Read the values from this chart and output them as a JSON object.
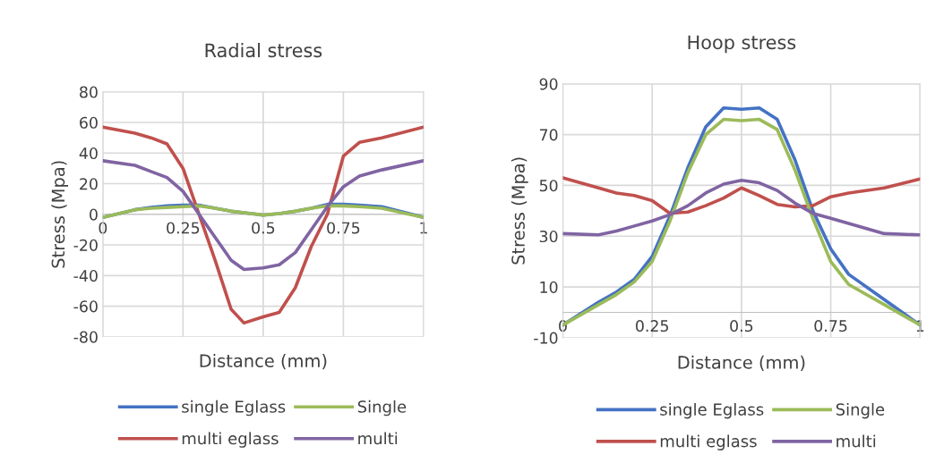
{
  "chart_data": [
    {
      "type": "line",
      "title": "Radial stress",
      "xlabel": "Distance (mm)",
      "ylabel": "Stress (Mpa)",
      "xlim": [
        0,
        1
      ],
      "xticks": [
        0,
        0.25,
        0.5,
        0.75,
        1
      ],
      "ylim": [
        -80,
        80
      ],
      "yticks": [
        -80,
        -60,
        -40,
        -20,
        0,
        20,
        40,
        60,
        80
      ],
      "grid": true,
      "legend": "bottom",
      "line_style": "solid",
      "marker": "none",
      "x": [
        0,
        0.1,
        0.15,
        0.2,
        0.25,
        0.3,
        0.35,
        0.4,
        0.44,
        0.5,
        0.55,
        0.6,
        0.65,
        0.7,
        0.75,
        0.8,
        0.87,
        1
      ],
      "series": [
        {
          "name": "single Eglass",
          "color": "#4472c4",
          "values": [
            -2,
            3,
            4.5,
            5.5,
            6,
            6,
            4,
            2,
            1,
            -0.5,
            0.5,
            2,
            4,
            6.5,
            6.5,
            6,
            5,
            -2
          ]
        },
        {
          "name": "multi eglass",
          "color": "#c0504d",
          "values": [
            57,
            53,
            50,
            46,
            30,
            0,
            -30,
            -62,
            -71,
            -67,
            -64,
            -48,
            -21,
            0,
            38,
            47,
            50,
            57
          ]
        },
        {
          "name": "Single",
          "color": "#9bbb59",
          "values": [
            -2,
            3,
            4,
            4.5,
            5,
            5.5,
            4,
            2,
            1,
            -0.5,
            0.5,
            2,
            4,
            5.5,
            5.5,
            5,
            4,
            -2
          ]
        },
        {
          "name": "multi",
          "color": "#8064a2",
          "values": [
            35,
            32,
            28,
            24,
            15,
            0,
            -15,
            -30,
            -36,
            -35,
            -33,
            -25,
            -10,
            5,
            18,
            25,
            29,
            35
          ]
        }
      ]
    },
    {
      "type": "line",
      "title": "Hoop stress",
      "xlabel": "Distance (mm)",
      "ylabel": "Stress (Mpa)",
      "xlim": [
        0,
        1
      ],
      "xticks": [
        0,
        0.25,
        0.5,
        0.75,
        1
      ],
      "ylim": [
        -10,
        90
      ],
      "yticks": [
        -10,
        10,
        30,
        50,
        70,
        90
      ],
      "grid": true,
      "legend": "bottom",
      "line_style": "solid",
      "marker": "none",
      "x": [
        0,
        0.1,
        0.15,
        0.2,
        0.25,
        0.3,
        0.35,
        0.4,
        0.45,
        0.5,
        0.55,
        0.6,
        0.65,
        0.7,
        0.75,
        0.8,
        0.9,
        1
      ],
      "series": [
        {
          "name": "single Eglass",
          "color": "#4472c4",
          "values": [
            -5,
            4,
            8,
            13,
            22,
            38,
            57,
            73,
            80.5,
            80,
            80.5,
            76,
            60,
            40,
            25,
            15,
            5,
            -5
          ]
        },
        {
          "name": "multi eglass",
          "color": "#c0504d",
          "values": [
            53,
            49,
            47,
            46,
            44,
            39,
            39.5,
            42,
            45,
            49,
            46,
            42.5,
            41.5,
            42,
            45.5,
            47,
            49,
            52.5
          ]
        },
        {
          "name": "Single",
          "color": "#9bbb59",
          "values": [
            -5,
            3,
            7,
            12,
            20,
            36,
            55,
            70,
            76,
            75.5,
            76,
            72,
            56,
            37,
            20,
            11,
            3,
            -5
          ]
        },
        {
          "name": "multi",
          "color": "#8064a2",
          "values": [
            31,
            30.5,
            32,
            34,
            36,
            38.5,
            42,
            47,
            50.5,
            52,
            51,
            48,
            43,
            39,
            37,
            35,
            31,
            30.5
          ]
        }
      ]
    }
  ]
}
